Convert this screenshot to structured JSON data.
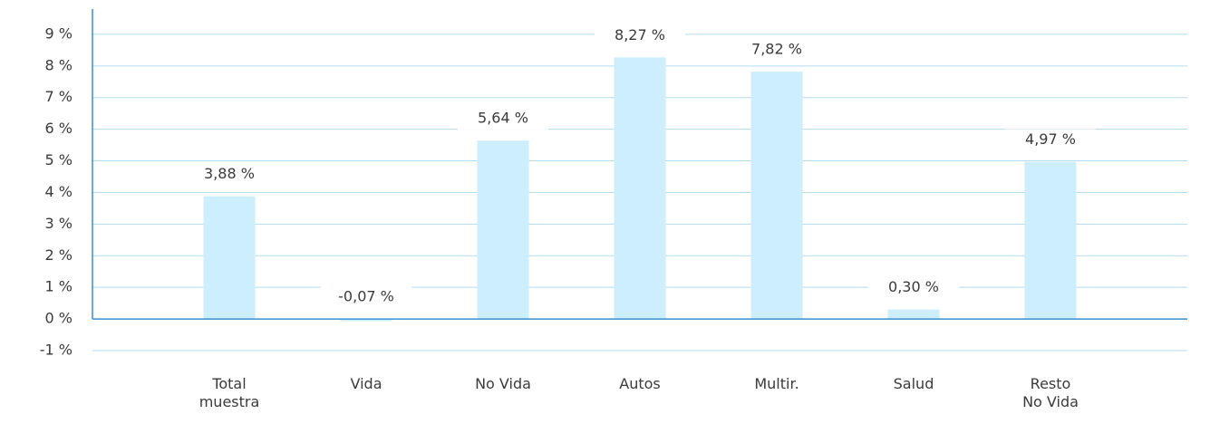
{
  "chart_data": {
    "type": "bar",
    "categories": [
      "Total\nmuestra",
      "Vida",
      "No Vida",
      "Autos",
      "Multir.",
      "Salud",
      "Resto\nNo Vida"
    ],
    "values": [
      3.88,
      -0.07,
      5.64,
      8.27,
      7.82,
      0.3,
      4.97
    ],
    "value_labels": [
      "3,88 %",
      "-0,07 %",
      "5,64 %",
      "8,27 %",
      "7,82 %",
      "0,30 %",
      "4,97 %"
    ],
    "color": "#cdeefc",
    "ylim": [
      -1,
      9.8
    ],
    "yticks": [
      {
        "value": -1,
        "label": "-1 %"
      },
      {
        "value": 0,
        "label": "0 %"
      },
      {
        "value": 1,
        "label": "1 %"
      },
      {
        "value": 2,
        "label": "2 %"
      },
      {
        "value": 3,
        "label": "3 %"
      },
      {
        "value": 4,
        "label": "4 %"
      },
      {
        "value": 5,
        "label": "5 %"
      },
      {
        "value": 6,
        "label": "6 %"
      },
      {
        "value": 7,
        "label": "7 %"
      },
      {
        "value": 8,
        "label": "8 %"
      },
      {
        "value": 9,
        "label": "9 %"
      }
    ],
    "grid": true
  }
}
